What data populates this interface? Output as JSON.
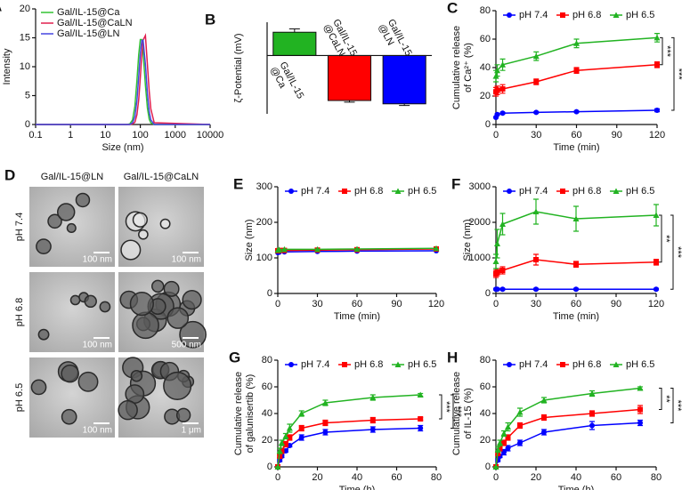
{
  "chart_data": [
    {
      "panel": "A",
      "type": "line",
      "log_x": true,
      "legend": "upper left",
      "markers": false,
      "xlabel": "Size (nm)",
      "ylabel": "Intensity",
      "x": [
        0.1,
        40,
        50,
        60,
        70,
        80,
        90,
        100,
        110,
        120,
        140,
        160,
        180,
        200,
        250,
        10000
      ],
      "xlim": [
        0.1,
        10000
      ],
      "xticks": [
        0.1,
        1,
        10,
        100,
        1000,
        10000
      ],
      "ylim": [
        0,
        20
      ],
      "yticks": [
        0,
        5,
        10,
        15,
        20
      ],
      "series": [
        {
          "name": "Gal/IL-15@Ca",
          "color": "#33c233",
          "values": [
            0,
            0,
            0.1,
            0.8,
            3.2,
            7.6,
            12.1,
            14.7,
            14.7,
            12.6,
            6.8,
            2.8,
            0.9,
            0.3,
            0,
            0
          ]
        },
        {
          "name": "Gal/IL-15@CaLN",
          "color": "#e0204f",
          "values": [
            0,
            0,
            0,
            0.1,
            0.4,
            1.7,
            4.3,
            8.1,
            11.9,
            14.6,
            15.4,
            10.3,
            5.7,
            2.7,
            0.3,
            0
          ]
        },
        {
          "name": "Gal/IL-15@LN",
          "color": "#4545e0",
          "values": [
            0,
            0,
            0,
            0.3,
            1.4,
            4.2,
            8.3,
            12.3,
            14.5,
            14.6,
            10.4,
            5.3,
            2.2,
            0.8,
            0,
            0
          ]
        }
      ]
    },
    {
      "panel": "B",
      "type": "bar",
      "ylabel": "ζ-Potential (mV)",
      "categories": [
        [
          "Gal/IL-15",
          "@Ca"
        ],
        [
          "Gal/IL-15",
          "@CaLN"
        ],
        [
          "Gal/IL-15",
          "@LN"
        ]
      ],
      "values": [
        14,
        -27,
        -29
      ],
      "errors": [
        2,
        1,
        1
      ],
      "colors": [
        "#22b322",
        "#ff0000",
        "#0000ff"
      ],
      "ylim": [
        -35,
        20
      ]
    },
    {
      "panel": "C",
      "type": "line",
      "log_x": false,
      "legend": "top",
      "markers": true,
      "xlabel": "Time (min)",
      "ylabel": [
        "Cumulative release",
        "of Ca²⁺ (%)"
      ],
      "x": [
        0,
        1,
        5,
        30,
        60,
        120
      ],
      "xlim": [
        0,
        120
      ],
      "xticks": [
        0,
        30,
        60,
        90,
        120
      ],
      "ylim": [
        0,
        80
      ],
      "yticks": [
        0,
        20,
        40,
        60,
        80
      ],
      "series": [
        {
          "name": "pH 7.4",
          "color": "#0000ff",
          "marker": "circle",
          "values": [
            5,
            7,
            8,
            8.5,
            9,
            10
          ],
          "errors": [
            0.5,
            0.5,
            0.5,
            0.5,
            0.5,
            1
          ]
        },
        {
          "name": "pH 6.8",
          "color": "#ff0000",
          "marker": "square",
          "values": [
            23,
            24,
            25,
            30,
            38,
            42
          ],
          "errors": [
            3,
            3,
            3,
            2,
            2,
            2
          ]
        },
        {
          "name": "pH 6.5",
          "color": "#22b322",
          "marker": "triangle",
          "values": [
            34,
            38,
            42,
            48,
            57,
            61
          ],
          "errors": [
            4,
            4,
            4,
            3,
            3,
            3
          ]
        }
      ],
      "significance": [
        {
          "label": "***",
          "series": [
            1,
            2
          ]
        },
        {
          "label": "***",
          "series": [
            0,
            2
          ]
        }
      ]
    },
    {
      "panel": "E",
      "type": "line",
      "log_x": false,
      "legend": "top",
      "markers": true,
      "xlabel": "Time (min)",
      "ylabel": "Size (nm)",
      "x": [
        0,
        1,
        5,
        30,
        60,
        120
      ],
      "xlim": [
        0,
        120
      ],
      "xticks": [
        0,
        30,
        60,
        90,
        120
      ],
      "ylim": [
        0,
        300
      ],
      "yticks": [
        0,
        100,
        200,
        300
      ],
      "series": [
        {
          "name": "pH 7.4",
          "color": "#0000ff",
          "marker": "circle",
          "values": [
            115,
            116,
            117,
            118,
            119,
            120
          ]
        },
        {
          "name": "pH 6.8",
          "color": "#ff0000",
          "marker": "square",
          "values": [
            120,
            121,
            121,
            122,
            123,
            125
          ]
        },
        {
          "name": "pH 6.5",
          "color": "#22b322",
          "marker": "triangle",
          "values": [
            122,
            123,
            124,
            124,
            125,
            127
          ]
        }
      ]
    },
    {
      "panel": "F",
      "type": "line",
      "log_x": false,
      "legend": "top",
      "markers": true,
      "xlabel": "Time (min)",
      "ylabel": "Size (nm)",
      "x": [
        0,
        1,
        5,
        30,
        60,
        120
      ],
      "xlim": [
        0,
        120
      ],
      "xticks": [
        0,
        30,
        60,
        90,
        120
      ],
      "ylim": [
        0,
        3000
      ],
      "yticks": [
        0,
        1000,
        2000,
        3000
      ],
      "series": [
        {
          "name": "pH 7.4",
          "color": "#0000ff",
          "marker": "circle",
          "values": [
            120,
            120,
            120,
            120,
            120,
            120
          ],
          "errors": [
            20,
            20,
            20,
            20,
            20,
            20
          ]
        },
        {
          "name": "pH 6.8",
          "color": "#ff0000",
          "marker": "square",
          "values": [
            550,
            600,
            650,
            950,
            820,
            880
          ],
          "errors": [
            100,
            100,
            100,
            150,
            80,
            80
          ]
        },
        {
          "name": "pH 6.5",
          "color": "#22b322",
          "marker": "triangle",
          "values": [
            900,
            1400,
            1950,
            2300,
            2100,
            2200
          ],
          "errors": [
            200,
            400,
            300,
            350,
            350,
            300
          ]
        }
      ],
      "significance": [
        {
          "label": "**",
          "series": [
            1,
            2
          ]
        },
        {
          "label": "***",
          "series": [
            0,
            2
          ]
        }
      ]
    },
    {
      "panel": "G",
      "type": "line",
      "log_x": false,
      "legend": "top",
      "markers": true,
      "xlabel": "Time (h)",
      "ylabel": [
        "Cumulative release",
        "of galunisertib (%)"
      ],
      "x": [
        0,
        1,
        2,
        4,
        6,
        12,
        24,
        48,
        72
      ],
      "xlim": [
        0,
        80
      ],
      "xticks": [
        0,
        20,
        40,
        60,
        80
      ],
      "ylim": [
        0,
        80
      ],
      "yticks": [
        0,
        20,
        40,
        60,
        80
      ],
      "series": [
        {
          "name": "pH 7.4",
          "color": "#0000ff",
          "marker": "circle",
          "values": [
            0,
            5,
            8,
            12,
            16,
            22,
            26,
            28,
            29
          ],
          "errors": [
            0,
            1,
            1,
            1,
            1,
            2,
            2,
            2,
            2
          ]
        },
        {
          "name": "pH 6.8",
          "color": "#ff0000",
          "marker": "square",
          "values": [
            0,
            8,
            12,
            17,
            22,
            29,
            33,
            35,
            36
          ],
          "errors": [
            0,
            1,
            2,
            2,
            2,
            2,
            2,
            2,
            1
          ]
        },
        {
          "name": "pH 6.5",
          "color": "#22b322",
          "marker": "triangle",
          "values": [
            0,
            12,
            18,
            23,
            29,
            40,
            48,
            52,
            54
          ],
          "errors": [
            0,
            2,
            2,
            2,
            3,
            2,
            2,
            2,
            1
          ]
        }
      ],
      "significance": [
        {
          "label": "***",
          "series": [
            1,
            2
          ]
        },
        {
          "label": "***",
          "series": [
            0,
            2
          ]
        }
      ]
    },
    {
      "panel": "H",
      "type": "line",
      "log_x": false,
      "legend": "top",
      "markers": true,
      "xlabel": "Time (h)",
      "ylabel": [
        "Cumulative release",
        "of IL-15 (%)"
      ],
      "x": [
        0,
        1,
        2,
        4,
        6,
        12,
        24,
        48,
        72
      ],
      "xlim": [
        0,
        80
      ],
      "xticks": [
        0,
        20,
        40,
        60,
        80
      ],
      "ylim": [
        0,
        80
      ],
      "yticks": [
        0,
        20,
        40,
        60,
        80
      ],
      "series": [
        {
          "name": "pH 7.4",
          "color": "#0000ff",
          "marker": "circle",
          "values": [
            0,
            5,
            8,
            11,
            14,
            18,
            26,
            31,
            33
          ],
          "errors": [
            0,
            1,
            1,
            2,
            2,
            2,
            2,
            3,
            2
          ]
        },
        {
          "name": "pH 6.8",
          "color": "#ff0000",
          "marker": "square",
          "values": [
            0,
            10,
            14,
            18,
            22,
            31,
            37,
            40,
            43
          ],
          "errors": [
            0,
            1,
            2,
            2,
            2,
            2,
            2,
            2,
            3
          ]
        },
        {
          "name": "pH 6.5",
          "color": "#22b322",
          "marker": "triangle",
          "values": [
            0,
            13,
            18,
            25,
            30,
            41,
            50,
            55,
            59
          ],
          "errors": [
            0,
            2,
            2,
            2,
            3,
            3,
            2,
            2,
            1
          ]
        }
      ],
      "significance": [
        {
          "label": "**",
          "series": [
            1,
            2
          ]
        },
        {
          "label": "***",
          "series": [
            0,
            2
          ]
        }
      ]
    }
  ],
  "tem": {
    "panel": "D",
    "columns": [
      "Gal/IL-15@LN",
      "Gal/IL-15@CaLN"
    ],
    "rows": [
      "pH 7.4",
      "pH 6.8",
      "pH 6.5"
    ],
    "scale_bars": [
      [
        "100 nm",
        "100 nm"
      ],
      [
        "100 nm",
        "500 nm"
      ],
      [
        "100 nm",
        "1 μm"
      ]
    ]
  }
}
